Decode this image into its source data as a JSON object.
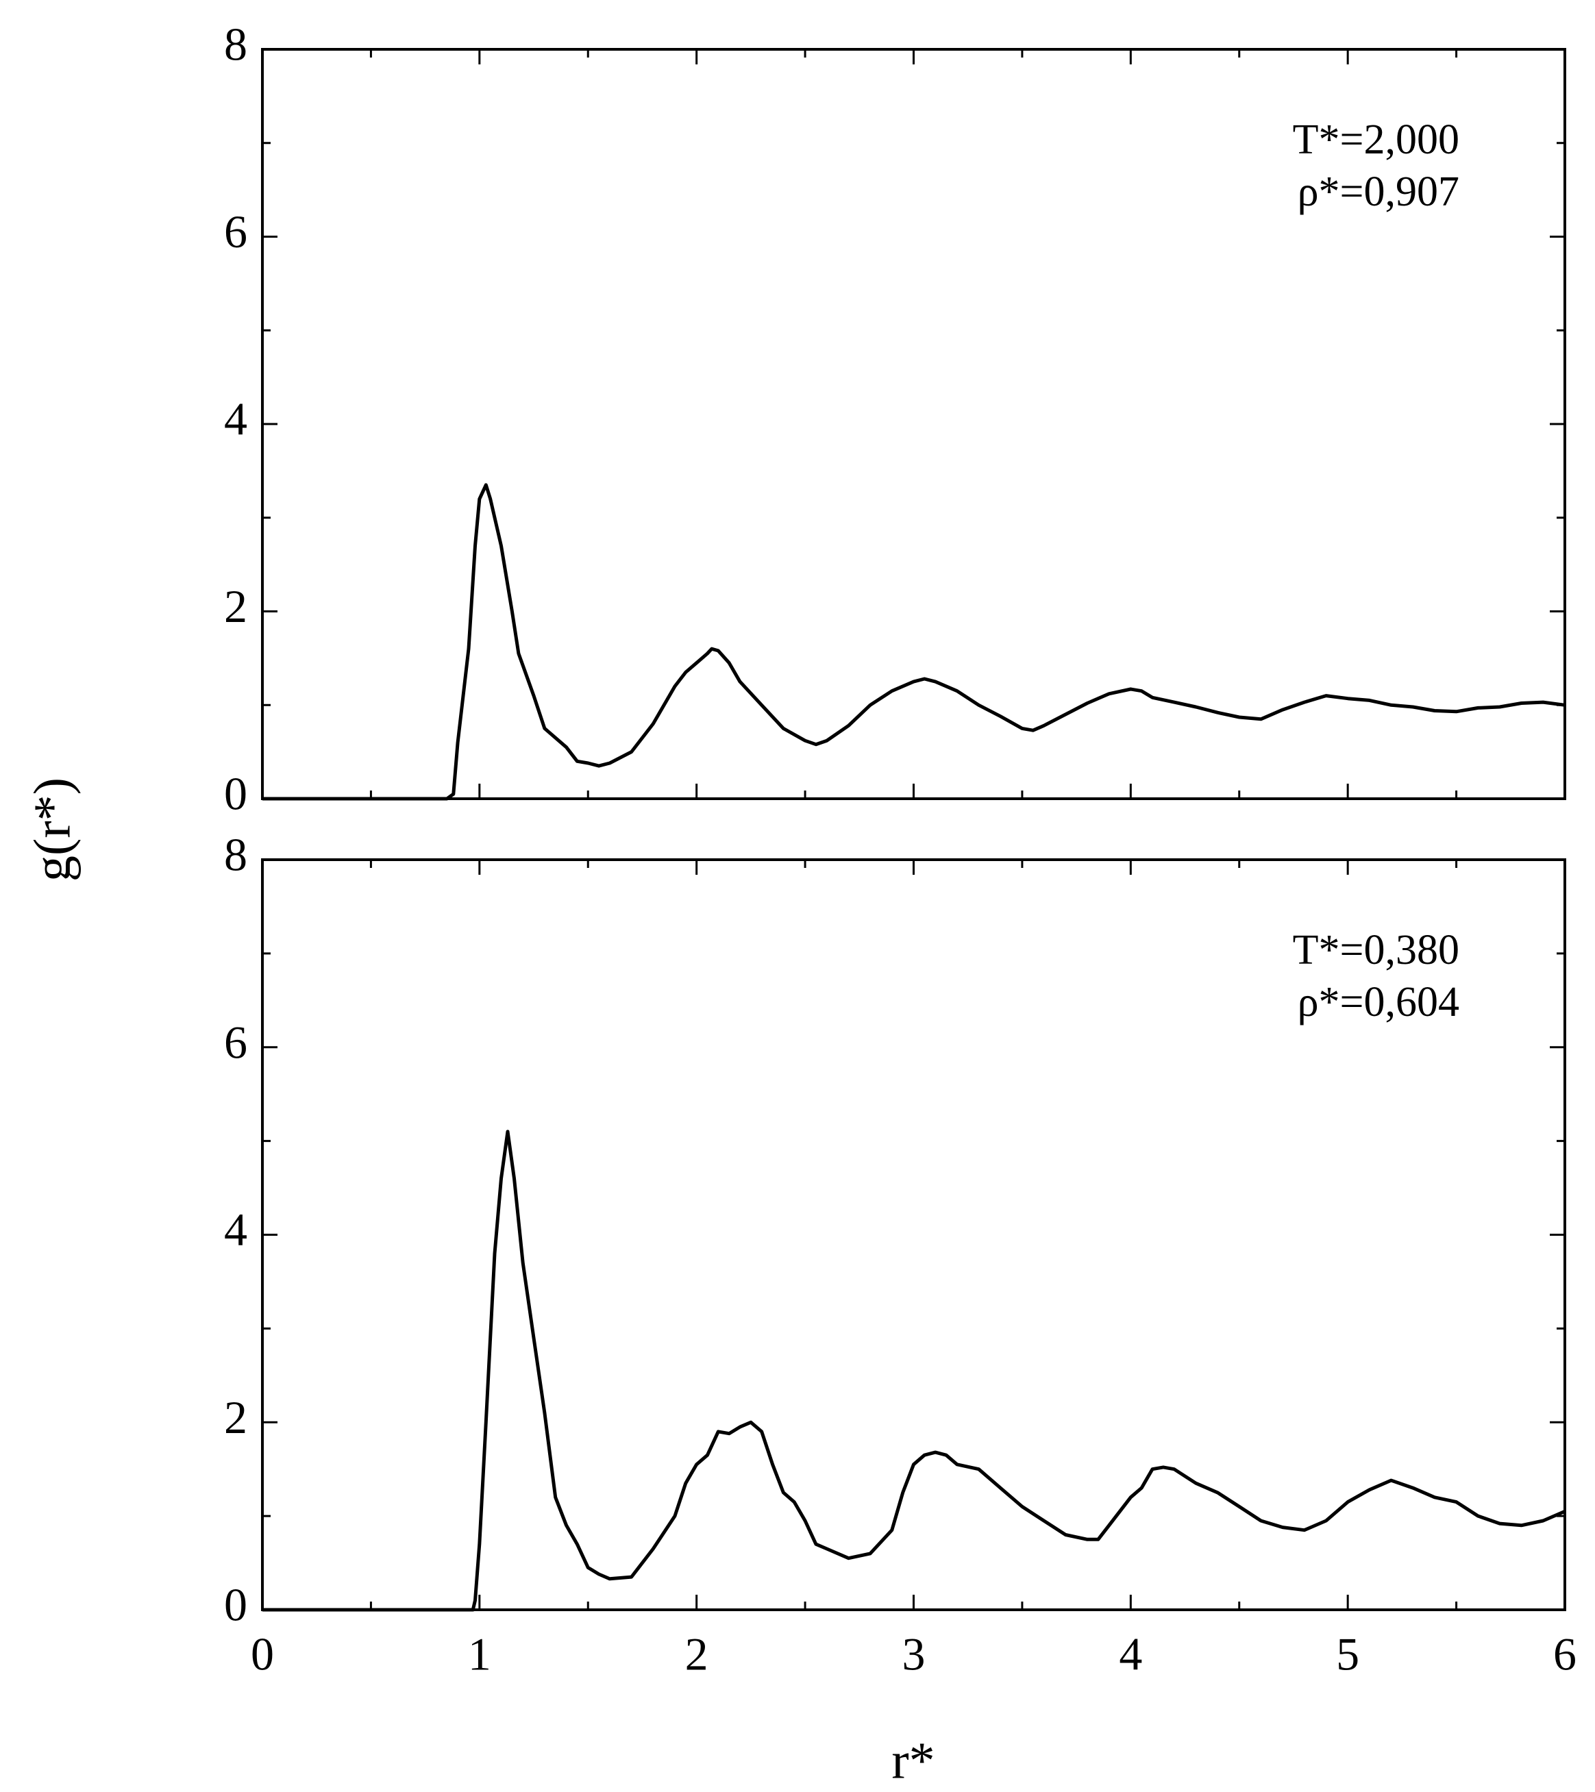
{
  "chart_data": [
    {
      "type": "line",
      "ylabel": "g(r*)",
      "annotations": [
        "T*=2,000",
        "ρ*=0,907"
      ],
      "xlim": [
        0,
        6
      ],
      "xticks": [
        0,
        1,
        2,
        3,
        4,
        5,
        6
      ],
      "xminorticks": [
        0.5,
        1.5,
        2.5,
        3.5,
        4.5,
        5.5
      ],
      "xticklabels": false,
      "ylim": [
        0,
        8
      ],
      "yticks": [
        0,
        2,
        4,
        6,
        8
      ],
      "yminorticks": [
        1,
        3,
        5,
        7
      ],
      "series": [
        {
          "color": "#000000",
          "x": [
            0,
            0.85,
            0.88,
            0.9,
            0.95,
            0.98,
            1.0,
            1.03,
            1.05,
            1.1,
            1.15,
            1.18,
            1.25,
            1.3,
            1.4,
            1.45,
            1.5,
            1.55,
            1.6,
            1.7,
            1.8,
            1.9,
            1.95,
            2.0,
            2.05,
            2.07,
            2.1,
            2.15,
            2.2,
            2.3,
            2.4,
            2.5,
            2.55,
            2.6,
            2.7,
            2.8,
            2.9,
            3.0,
            3.05,
            3.1,
            3.2,
            3.3,
            3.4,
            3.5,
            3.55,
            3.6,
            3.7,
            3.8,
            3.9,
            4.0,
            4.05,
            4.1,
            4.2,
            4.3,
            4.4,
            4.5,
            4.6,
            4.7,
            4.8,
            4.9,
            5.0,
            5.1,
            5.2,
            5.3,
            5.4,
            5.5,
            5.6,
            5.7,
            5.8,
            5.9,
            6.0
          ],
          "values": [
            0,
            0,
            0.05,
            0.6,
            1.6,
            2.7,
            3.2,
            3.35,
            3.2,
            2.7,
            2.0,
            1.55,
            1.1,
            0.75,
            0.55,
            0.4,
            0.38,
            0.35,
            0.38,
            0.5,
            0.8,
            1.2,
            1.35,
            1.45,
            1.55,
            1.6,
            1.58,
            1.45,
            1.25,
            1.0,
            0.75,
            0.62,
            0.58,
            0.62,
            0.78,
            1.0,
            1.15,
            1.25,
            1.28,
            1.25,
            1.15,
            1.0,
            0.88,
            0.75,
            0.73,
            0.78,
            0.9,
            1.02,
            1.12,
            1.17,
            1.15,
            1.08,
            1.03,
            0.98,
            0.92,
            0.87,
            0.85,
            0.95,
            1.03,
            1.1,
            1.07,
            1.05,
            1.0,
            0.98,
            0.94,
            0.93,
            0.97,
            0.98,
            1.02,
            1.03,
            1.0
          ]
        }
      ]
    },
    {
      "type": "line",
      "xlabel": "r*",
      "annotations": [
        "T*=0,380",
        "ρ*=0,604"
      ],
      "xlim": [
        0,
        6
      ],
      "xticks": [
        0,
        1,
        2,
        3,
        4,
        5,
        6
      ],
      "xminorticks": [
        0.5,
        1.5,
        2.5,
        3.5,
        4.5,
        5.5
      ],
      "xticklabels": true,
      "ylim": [
        0,
        8
      ],
      "yticks": [
        0,
        2,
        4,
        6,
        8
      ],
      "yminorticks": [
        1,
        3,
        5,
        7
      ],
      "series": [
        {
          "color": "#000000",
          "x": [
            0,
            0.97,
            0.98,
            1.0,
            1.03,
            1.07,
            1.1,
            1.13,
            1.16,
            1.2,
            1.25,
            1.3,
            1.35,
            1.4,
            1.45,
            1.5,
            1.55,
            1.6,
            1.7,
            1.8,
            1.9,
            1.95,
            2.0,
            2.05,
            2.1,
            2.15,
            2.2,
            2.25,
            2.3,
            2.35,
            2.4,
            2.45,
            2.5,
            2.55,
            2.6,
            2.7,
            2.8,
            2.9,
            2.95,
            3.0,
            3.05,
            3.1,
            3.15,
            3.2,
            3.3,
            3.4,
            3.5,
            3.6,
            3.7,
            3.8,
            3.85,
            3.9,
            4.0,
            4.05,
            4.1,
            4.15,
            4.2,
            4.3,
            4.4,
            4.5,
            4.6,
            4.7,
            4.8,
            4.9,
            5.0,
            5.1,
            5.2,
            5.3,
            5.4,
            5.5,
            5.6,
            5.7,
            5.8,
            5.9,
            6.0
          ],
          "values": [
            0,
            0,
            0.1,
            0.7,
            2.0,
            3.8,
            4.6,
            5.1,
            4.6,
            3.7,
            2.9,
            2.1,
            1.2,
            0.9,
            0.7,
            0.45,
            0.38,
            0.33,
            0.35,
            0.65,
            1.0,
            1.35,
            1.55,
            1.65,
            1.9,
            1.88,
            1.95,
            2.0,
            1.9,
            1.55,
            1.25,
            1.15,
            0.95,
            0.7,
            0.65,
            0.55,
            0.6,
            0.85,
            1.25,
            1.55,
            1.65,
            1.68,
            1.65,
            1.55,
            1.5,
            1.3,
            1.1,
            0.95,
            0.8,
            0.75,
            0.75,
            0.9,
            1.2,
            1.3,
            1.5,
            1.52,
            1.5,
            1.35,
            1.25,
            1.1,
            0.95,
            0.88,
            0.85,
            0.95,
            1.15,
            1.28,
            1.38,
            1.3,
            1.2,
            1.15,
            1.0,
            0.92,
            0.9,
            0.95,
            1.05
          ]
        }
      ]
    }
  ]
}
